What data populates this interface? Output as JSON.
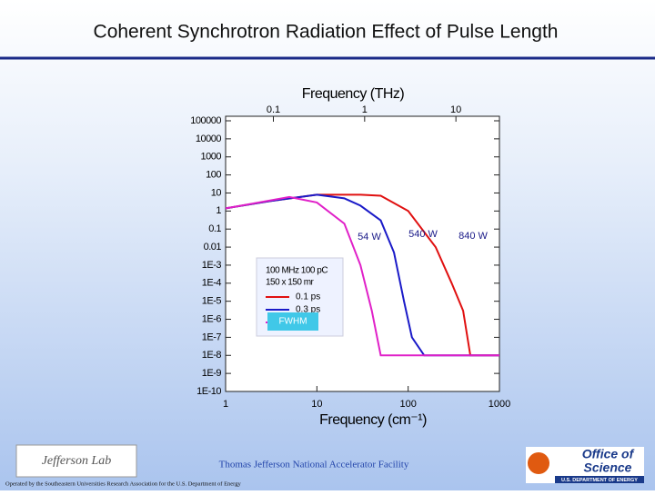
{
  "slide_title": "Coherent Synchrotron Radiation Effect of Pulse Length",
  "footer": {
    "facility": "Thomas Jefferson National Accelerator Facility",
    "operated_by": "Operated by the Southeastern Universities Research Association for the U.S. Department of Energy",
    "left_logo": "Jefferson Lab",
    "right_logo_1": "Office of",
    "right_logo_2": "Science",
    "right_logo_3": "U.S. DEPARTMENT OF ENERGY"
  },
  "chart_data": {
    "type": "line",
    "x_label": "Frequency (cm⁻¹)",
    "x2_label": "Frequency (THz)",
    "log_x": true,
    "log_y": true,
    "xlim": [
      1,
      1000
    ],
    "xticks": [
      1,
      10,
      100,
      1000
    ],
    "x2lim": [
      0.02998,
      29.98
    ],
    "x2ticks": [
      0.1,
      1,
      10
    ],
    "ylim": [
      1e-10,
      100000
    ],
    "yticks": [
      {
        "value": 1e-10,
        "label": "1E-10"
      },
      {
        "value": 1e-09,
        "label": "1E-9"
      },
      {
        "value": 1e-08,
        "label": "1E-8"
      },
      {
        "value": 1e-07,
        "label": "1E-7"
      },
      {
        "value": 1e-06,
        "label": "1E-6"
      },
      {
        "value": 1e-05,
        "label": "1E-5"
      },
      {
        "value": 0.0001,
        "label": "1E-4"
      },
      {
        "value": 0.001,
        "label": "1E-3"
      },
      0.01,
      0.1,
      1,
      10,
      100,
      1000,
      10000,
      100000
    ],
    "legend_lines": [
      "100 MHz 100 pC",
      "150 x 150 mr"
    ],
    "series": [
      {
        "name": "0.1 ps",
        "color": "#e01010",
        "x": [
          1,
          3,
          10,
          30,
          50,
          100,
          200,
          300,
          400,
          480,
          1000
        ],
        "values": [
          1.4,
          3.5,
          8,
          8,
          7,
          1,
          0.01,
          0.0001,
          3e-06,
          1e-08,
          1e-08
        ]
      },
      {
        "name": "0.3 ps",
        "color": "#1a1ac8",
        "x": [
          1,
          3,
          10,
          20,
          30,
          50,
          70,
          90,
          110,
          150,
          1000
        ],
        "values": [
          1.4,
          3.5,
          8,
          5,
          2,
          0.3,
          0.005,
          1e-05,
          1e-07,
          1e-08,
          1e-08
        ]
      },
      {
        "color": "#e020c8",
        "x": [
          1,
          5,
          10,
          20,
          30,
          40,
          50,
          1000
        ],
        "values": [
          1.4,
          6,
          3,
          0.2,
          0.001,
          3e-06,
          1e-08,
          1e-08
        ]
      }
    ],
    "annotations": [
      "54 W",
      "540 W",
      "840 W",
      "FWHM"
    ]
  }
}
